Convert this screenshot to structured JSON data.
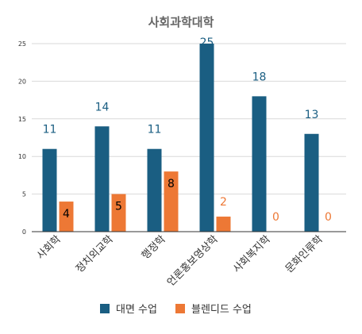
{
  "chart_data": {
    "type": "bar",
    "title": "사회과학대학",
    "categories": [
      "사회학",
      "정치외교학",
      "행정학",
      "언론홍보영상학",
      "사회복지학",
      "문화인류학"
    ],
    "series": [
      {
        "name": "대면 수업",
        "color": "#1a5e82",
        "values": [
          11,
          14,
          11,
          25,
          18,
          13
        ]
      },
      {
        "name": "블렌디드 수업",
        "color": "#ed7835",
        "values": [
          4,
          5,
          8,
          2,
          0,
          0
        ]
      }
    ],
    "data_label_colors": [
      "#1a5e82",
      "#000000",
      "#000000",
      "#ed7835"
    ],
    "ylim": [
      0,
      25
    ],
    "yticks": [
      0,
      5,
      10,
      15,
      20,
      25
    ],
    "grid": true,
    "legend_position": "bottom"
  }
}
